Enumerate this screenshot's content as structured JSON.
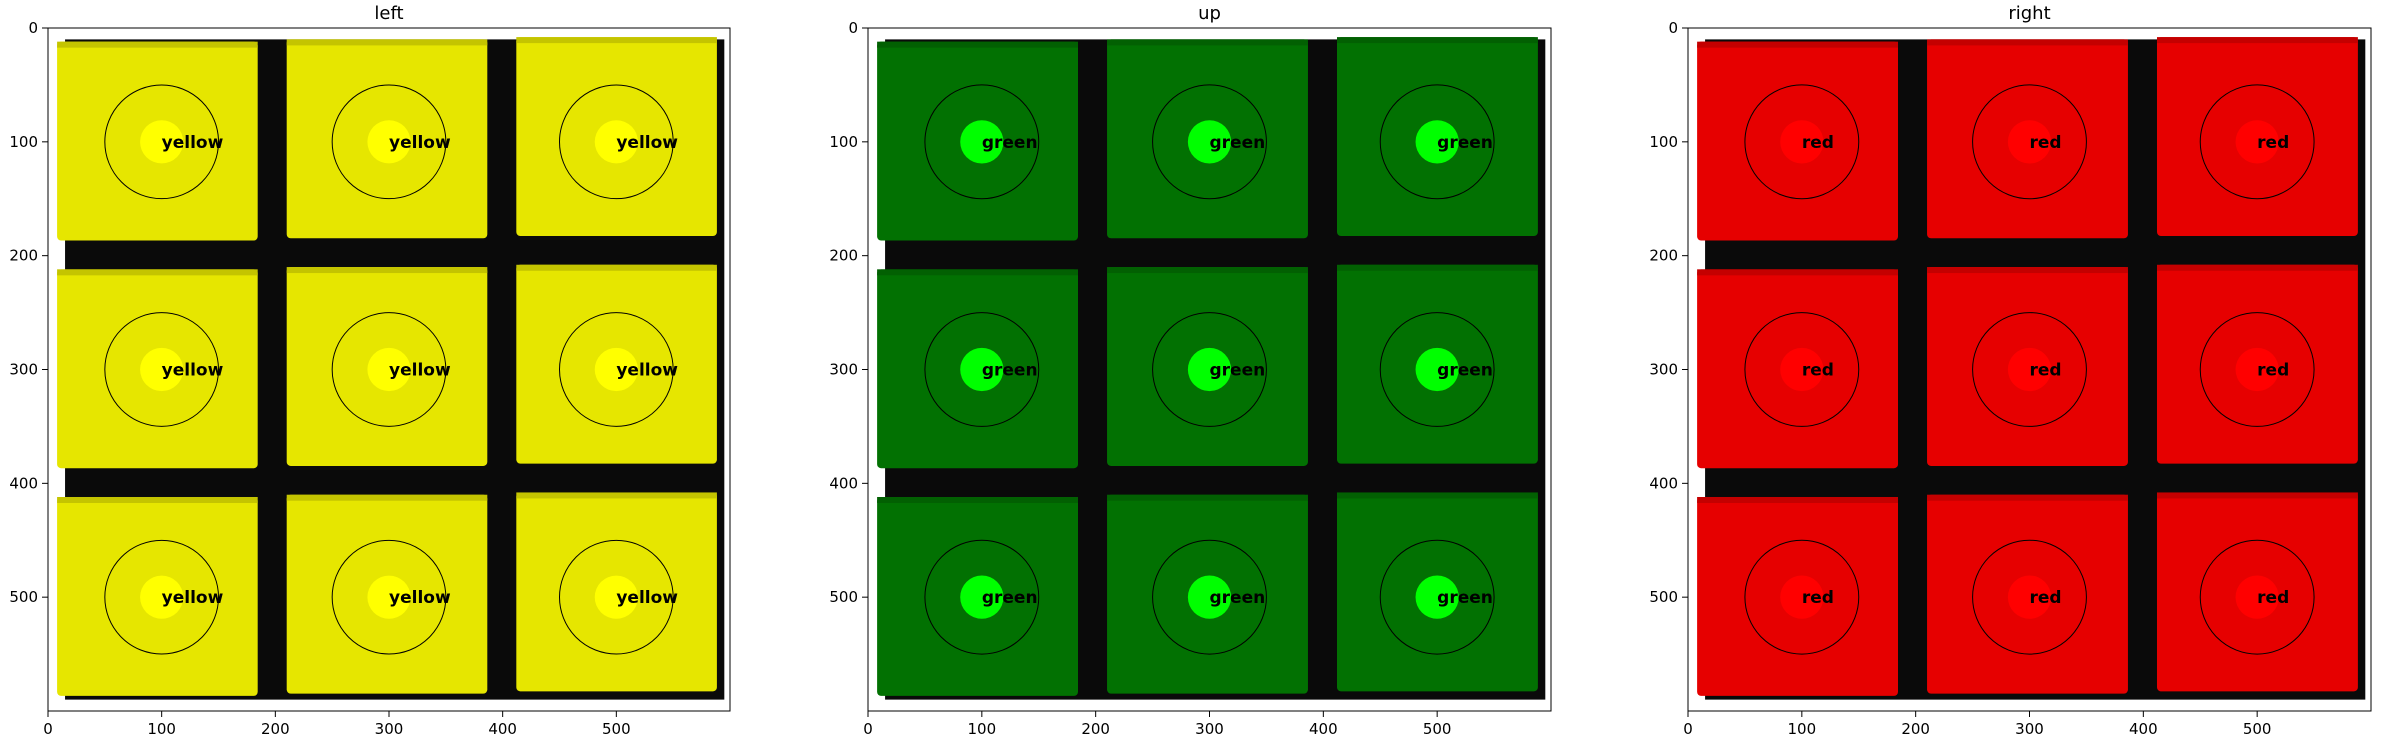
{
  "figure": {
    "background": "#ffffff"
  },
  "chart_data": [
    {
      "type": "image",
      "title": "left",
      "xlim": [
        0,
        600
      ],
      "ylim": [
        600,
        0
      ],
      "xticks": [
        0,
        100,
        200,
        300,
        400,
        500
      ],
      "yticks": [
        0,
        100,
        200,
        300,
        400,
        500
      ],
      "grid": false,
      "face_color": "#e6e600",
      "marker_color": "#ffff00",
      "cells": [
        {
          "center": [
            100,
            100
          ],
          "label": "yellow"
        },
        {
          "center": [
            300,
            100
          ],
          "label": "yellow"
        },
        {
          "center": [
            500,
            100
          ],
          "label": "yellow"
        },
        {
          "center": [
            100,
            300
          ],
          "label": "yellow"
        },
        {
          "center": [
            300,
            300
          ],
          "label": "yellow"
        },
        {
          "center": [
            500,
            300
          ],
          "label": "yellow"
        },
        {
          "center": [
            100,
            500
          ],
          "label": "yellow"
        },
        {
          "center": [
            300,
            500
          ],
          "label": "yellow"
        },
        {
          "center": [
            500,
            500
          ],
          "label": "yellow"
        }
      ]
    },
    {
      "type": "image",
      "title": "up",
      "xlim": [
        0,
        600
      ],
      "ylim": [
        600,
        0
      ],
      "xticks": [
        0,
        100,
        200,
        300,
        400,
        500
      ],
      "yticks": [
        0,
        100,
        200,
        300,
        400,
        500
      ],
      "grid": false,
      "face_color": "#027102",
      "marker_color": "#00ff00",
      "cells": [
        {
          "center": [
            100,
            100
          ],
          "label": "green"
        },
        {
          "center": [
            300,
            100
          ],
          "label": "green"
        },
        {
          "center": [
            500,
            100
          ],
          "label": "green"
        },
        {
          "center": [
            100,
            300
          ],
          "label": "green"
        },
        {
          "center": [
            300,
            300
          ],
          "label": "green"
        },
        {
          "center": [
            500,
            300
          ],
          "label": "green"
        },
        {
          "center": [
            100,
            500
          ],
          "label": "green"
        },
        {
          "center": [
            300,
            500
          ],
          "label": "green"
        },
        {
          "center": [
            500,
            500
          ],
          "label": "green"
        }
      ]
    },
    {
      "type": "image",
      "title": "right",
      "xlim": [
        0,
        600
      ],
      "ylim": [
        600,
        0
      ],
      "xticks": [
        0,
        100,
        200,
        300,
        400,
        500
      ],
      "yticks": [
        0,
        100,
        200,
        300,
        400,
        500
      ],
      "grid": false,
      "face_color": "#e60000",
      "marker_color": "#ff0000",
      "cells": [
        {
          "center": [
            100,
            100
          ],
          "label": "red"
        },
        {
          "center": [
            300,
            100
          ],
          "label": "red"
        },
        {
          "center": [
            500,
            100
          ],
          "label": "red"
        },
        {
          "center": [
            100,
            300
          ],
          "label": "red"
        },
        {
          "center": [
            300,
            300
          ],
          "label": "red"
        },
        {
          "center": [
            500,
            300
          ],
          "label": "red"
        },
        {
          "center": [
            100,
            500
          ],
          "label": "red"
        },
        {
          "center": [
            300,
            500
          ],
          "label": "red"
        },
        {
          "center": [
            500,
            500
          ],
          "label": "red"
        }
      ]
    }
  ]
}
